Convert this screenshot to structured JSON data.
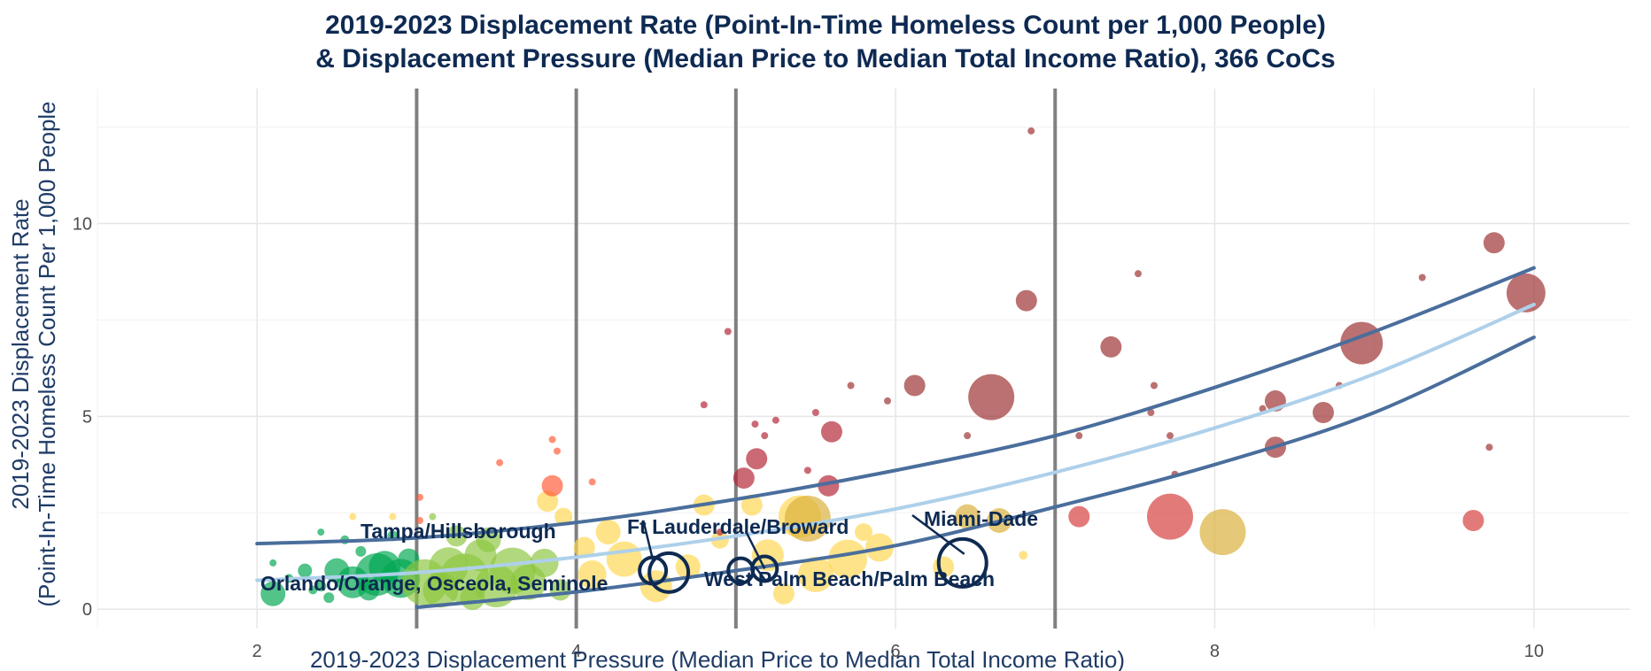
{
  "chart_data": {
    "type": "scatter",
    "title_line1": "2019-2023 Displacement Rate (Point-In-Time Homeless Count per 1,000 People)",
    "title_line2": "& Displacement Pressure (Median Price to Median Total Income Ratio), 366 CoCs",
    "xlabel": "2019-2023 Displacement Pressure (Median Price to Median Total Income Ratio)",
    "ylabel_line1": "2019-2023 Displacement Rate",
    "ylabel_line2": "(Point-In-Time Homeless Count Per 1,000 People",
    "xlim": [
      1.0,
      10.6
    ],
    "ylim": [
      -0.5,
      13.5
    ],
    "x_ticks": [
      2,
      4,
      6,
      8,
      10
    ],
    "y_ticks": [
      0,
      5,
      10
    ],
    "grid": true,
    "vertical_reference_lines": [
      3,
      4,
      5,
      7
    ],
    "colors": {
      "green": "#00a651",
      "light_green": "#8cc63f",
      "yellow": "#ffd54f",
      "orange_red": "#ff5a36",
      "dark_red": "#b22234",
      "maroon": "#9b2d2d",
      "fit": "#aed0ea",
      "band": "#4a6e9c",
      "highlight": "#0e2a52",
      "reference_line": "#808080"
    },
    "points": [
      {
        "x": 2.1,
        "y": 0.4,
        "s": 14,
        "c": "green"
      },
      {
        "x": 2.1,
        "y": 1.2,
        "s": 4,
        "c": "green"
      },
      {
        "x": 2.2,
        "y": 0.8,
        "s": 5,
        "c": "green"
      },
      {
        "x": 2.3,
        "y": 1.0,
        "s": 8,
        "c": "green"
      },
      {
        "x": 2.35,
        "y": 0.5,
        "s": 5,
        "c": "green"
      },
      {
        "x": 2.4,
        "y": 0.6,
        "s": 6,
        "c": "green"
      },
      {
        "x": 2.4,
        "y": 2.0,
        "s": 4,
        "c": "green"
      },
      {
        "x": 2.5,
        "y": 1.0,
        "s": 14,
        "c": "green"
      },
      {
        "x": 2.6,
        "y": 0.7,
        "s": 18,
        "c": "green"
      },
      {
        "x": 2.7,
        "y": 0.5,
        "s": 12,
        "c": "green"
      },
      {
        "x": 2.75,
        "y": 0.9,
        "s": 24,
        "c": "green"
      },
      {
        "x": 2.8,
        "y": 1.1,
        "s": 18,
        "c": "green"
      },
      {
        "x": 2.9,
        "y": 0.8,
        "s": 22,
        "c": "green"
      },
      {
        "x": 2.95,
        "y": 1.3,
        "s": 12,
        "c": "green"
      },
      {
        "x": 2.65,
        "y": 1.5,
        "s": 6,
        "c": "green"
      },
      {
        "x": 2.55,
        "y": 1.8,
        "s": 5,
        "c": "green"
      },
      {
        "x": 2.85,
        "y": 1.9,
        "s": 6,
        "c": "green"
      },
      {
        "x": 2.45,
        "y": 0.3,
        "s": 6,
        "c": "green"
      },
      {
        "x": 3.05,
        "y": 0.7,
        "s": 26,
        "c": "light_green"
      },
      {
        "x": 3.15,
        "y": 0.5,
        "s": 20,
        "c": "light_green"
      },
      {
        "x": 3.2,
        "y": 1.1,
        "s": 22,
        "c": "light_green"
      },
      {
        "x": 3.3,
        "y": 0.8,
        "s": 28,
        "c": "light_green"
      },
      {
        "x": 3.4,
        "y": 1.4,
        "s": 18,
        "c": "light_green"
      },
      {
        "x": 3.5,
        "y": 0.6,
        "s": 24,
        "c": "light_green"
      },
      {
        "x": 3.6,
        "y": 1.0,
        "s": 26,
        "c": "light_green"
      },
      {
        "x": 3.7,
        "y": 0.7,
        "s": 20,
        "c": "light_green"
      },
      {
        "x": 3.8,
        "y": 1.2,
        "s": 16,
        "c": "light_green"
      },
      {
        "x": 3.25,
        "y": 1.9,
        "s": 12,
        "c": "light_green"
      },
      {
        "x": 3.45,
        "y": 1.8,
        "s": 14,
        "c": "light_green"
      },
      {
        "x": 3.9,
        "y": 0.5,
        "s": 12,
        "c": "light_green"
      },
      {
        "x": 3.1,
        "y": 2.4,
        "s": 4,
        "c": "light_green"
      },
      {
        "x": 3.35,
        "y": 0.3,
        "s": 14,
        "c": "light_green"
      },
      {
        "x": 4.1,
        "y": 0.9,
        "s": 16,
        "c": "yellow"
      },
      {
        "x": 4.3,
        "y": 1.3,
        "s": 20,
        "c": "yellow"
      },
      {
        "x": 4.5,
        "y": 0.6,
        "s": 18,
        "c": "yellow"
      },
      {
        "x": 4.7,
        "y": 1.1,
        "s": 14,
        "c": "yellow"
      },
      {
        "x": 4.8,
        "y": 2.7,
        "s": 12,
        "c": "yellow"
      },
      {
        "x": 4.9,
        "y": 1.8,
        "s": 10,
        "c": "yellow"
      },
      {
        "x": 3.82,
        "y": 2.8,
        "s": 12,
        "c": "yellow"
      },
      {
        "x": 3.92,
        "y": 2.4,
        "s": 10,
        "c": "yellow"
      },
      {
        "x": 4.2,
        "y": 2.0,
        "s": 14,
        "c": "yellow"
      },
      {
        "x": 4.05,
        "y": 1.6,
        "s": 12,
        "c": "yellow"
      },
      {
        "x": 5.1,
        "y": 2.7,
        "s": 12,
        "c": "yellow"
      },
      {
        "x": 5.2,
        "y": 1.4,
        "s": 18,
        "c": "yellow"
      },
      {
        "x": 5.4,
        "y": 2.4,
        "s": 24,
        "c": "yellow"
      },
      {
        "x": 5.5,
        "y": 0.9,
        "s": 20,
        "c": "yellow"
      },
      {
        "x": 5.7,
        "y": 1.3,
        "s": 22,
        "c": "yellow"
      },
      {
        "x": 5.9,
        "y": 1.6,
        "s": 16,
        "c": "yellow"
      },
      {
        "x": 5.3,
        "y": 0.4,
        "s": 12,
        "c": "yellow"
      },
      {
        "x": 5.8,
        "y": 2.0,
        "s": 10,
        "c": "yellow"
      },
      {
        "x": 5.45,
        "y": 2.35,
        "s": 26,
        "c": "yellow_dark"
      },
      {
        "x": 6.45,
        "y": 2.4,
        "s": 14,
        "c": "yellow_dark"
      },
      {
        "x": 6.65,
        "y": 2.3,
        "s": 14,
        "c": "yellow_dark"
      },
      {
        "x": 8.05,
        "y": 2.0,
        "s": 26,
        "c": "yellow_dark"
      },
      {
        "x": 6.3,
        "y": 1.1,
        "s": 12,
        "c": "yellow"
      },
      {
        "x": 6.8,
        "y": 1.4,
        "s": 5,
        "c": "yellow"
      },
      {
        "x": 2.85,
        "y": 2.4,
        "s": 4,
        "c": "yellow"
      },
      {
        "x": 2.6,
        "y": 2.4,
        "s": 4,
        "c": "yellow"
      },
      {
        "x": 3.85,
        "y": 3.2,
        "s": 12,
        "c": "orange_red"
      },
      {
        "x": 3.52,
        "y": 3.8,
        "s": 4,
        "c": "orange_red"
      },
      {
        "x": 3.85,
        "y": 4.4,
        "s": 4,
        "c": "orange_red"
      },
      {
        "x": 4.1,
        "y": 3.3,
        "s": 4,
        "c": "orange_red"
      },
      {
        "x": 3.02,
        "y": 2.9,
        "s": 4,
        "c": "orange_red"
      },
      {
        "x": 3.02,
        "y": 2.3,
        "s": 4,
        "c": "orange_red"
      },
      {
        "x": 3.88,
        "y": 4.1,
        "s": 4,
        "c": "orange_red"
      },
      {
        "x": 7.72,
        "y": 2.4,
        "s": 26,
        "c": "red"
      },
      {
        "x": 9.62,
        "y": 2.3,
        "s": 12,
        "c": "red"
      },
      {
        "x": 7.15,
        "y": 2.4,
        "s": 12,
        "c": "red"
      },
      {
        "x": 5.6,
        "y": 4.6,
        "s": 12,
        "c": "dark_red"
      },
      {
        "x": 5.58,
        "y": 3.2,
        "s": 12,
        "c": "dark_red"
      },
      {
        "x": 5.13,
        "y": 3.9,
        "s": 12,
        "c": "dark_red"
      },
      {
        "x": 5.05,
        "y": 3.4,
        "s": 12,
        "c": "dark_red"
      },
      {
        "x": 5.12,
        "y": 4.8,
        "s": 4,
        "c": "dark_red"
      },
      {
        "x": 5.25,
        "y": 4.9,
        "s": 4,
        "c": "dark_red"
      },
      {
        "x": 5.5,
        "y": 5.1,
        "s": 4,
        "c": "dark_red"
      },
      {
        "x": 4.95,
        "y": 7.2,
        "s": 4,
        "c": "dark_red"
      },
      {
        "x": 4.8,
        "y": 5.3,
        "s": 4,
        "c": "dark_red"
      },
      {
        "x": 5.18,
        "y": 4.5,
        "s": 4,
        "c": "dark_red"
      },
      {
        "x": 5.45,
        "y": 3.6,
        "s": 4,
        "c": "dark_red"
      },
      {
        "x": 4.9,
        "y": 2.0,
        "s": 4,
        "c": "dark_red"
      },
      {
        "x": 6.12,
        "y": 5.8,
        "s": 12,
        "c": "maroon"
      },
      {
        "x": 5.72,
        "y": 5.8,
        "s": 4,
        "c": "maroon"
      },
      {
        "x": 5.95,
        "y": 5.4,
        "s": 4,
        "c": "maroon"
      },
      {
        "x": 6.45,
        "y": 4.5,
        "s": 4,
        "c": "maroon"
      },
      {
        "x": 6.6,
        "y": 5.5,
        "s": 26,
        "c": "maroon"
      },
      {
        "x": 6.82,
        "y": 8.0,
        "s": 12,
        "c": "maroon"
      },
      {
        "x": 6.85,
        "y": 12.4,
        "s": 4,
        "c": "maroon"
      },
      {
        "x": 7.15,
        "y": 4.5,
        "s": 4,
        "c": "maroon"
      },
      {
        "x": 7.35,
        "y": 6.8,
        "s": 12,
        "c": "maroon"
      },
      {
        "x": 7.52,
        "y": 8.7,
        "s": 4,
        "c": "maroon"
      },
      {
        "x": 7.62,
        "y": 5.8,
        "s": 4,
        "c": "maroon"
      },
      {
        "x": 7.6,
        "y": 5.1,
        "s": 4,
        "c": "maroon"
      },
      {
        "x": 7.72,
        "y": 4.5,
        "s": 4,
        "c": "maroon"
      },
      {
        "x": 7.75,
        "y": 3.5,
        "s": 4,
        "c": "maroon"
      },
      {
        "x": 8.3,
        "y": 5.2,
        "s": 4,
        "c": "maroon"
      },
      {
        "x": 8.38,
        "y": 5.4,
        "s": 12,
        "c": "maroon"
      },
      {
        "x": 8.38,
        "y": 4.2,
        "s": 12,
        "c": "maroon"
      },
      {
        "x": 8.68,
        "y": 5.1,
        "s": 12,
        "c": "maroon"
      },
      {
        "x": 8.78,
        "y": 5.8,
        "s": 4,
        "c": "maroon"
      },
      {
        "x": 8.92,
        "y": 6.9,
        "s": 24,
        "c": "maroon"
      },
      {
        "x": 9.3,
        "y": 8.6,
        "s": 4,
        "c": "maroon"
      },
      {
        "x": 9.72,
        "y": 4.2,
        "s": 4,
        "c": "maroon"
      },
      {
        "x": 9.75,
        "y": 9.5,
        "s": 12,
        "c": "maroon"
      },
      {
        "x": 9.95,
        "y": 8.2,
        "s": 22,
        "c": "maroon"
      }
    ],
    "fit_center": [
      [
        2.0,
        0.75
      ],
      [
        3.0,
        0.95
      ],
      [
        4.0,
        1.35
      ],
      [
        5.0,
        1.9
      ],
      [
        6.0,
        2.6
      ],
      [
        7.0,
        3.55
      ],
      [
        8.0,
        4.7
      ],
      [
        9.0,
        6.1
      ],
      [
        10.0,
        7.9
      ]
    ],
    "fit_upper": [
      [
        2.0,
        1.7
      ],
      [
        3.0,
        1.85
      ],
      [
        4.0,
        2.25
      ],
      [
        5.0,
        2.85
      ],
      [
        6.0,
        3.6
      ],
      [
        7.0,
        4.5
      ],
      [
        8.0,
        5.75
      ],
      [
        9.0,
        7.2
      ],
      [
        10.0,
        8.85
      ]
    ],
    "fit_lower": [
      [
        3.0,
        0.05
      ],
      [
        4.0,
        0.45
      ],
      [
        5.0,
        1.0
      ],
      [
        6.0,
        1.65
      ],
      [
        7.0,
        2.65
      ],
      [
        8.0,
        3.75
      ],
      [
        9.0,
        5.1
      ],
      [
        10.0,
        7.05
      ]
    ],
    "highlighted": [
      {
        "label": "Tampa/Hillsborough",
        "x": 4.48,
        "y": 1.0,
        "s": 15
      },
      {
        "label": "Orlando/Orange, Osceola, Seminole",
        "x": 4.58,
        "y": 0.95,
        "s": 22
      },
      {
        "label": "Ft Lauderdale/Broward",
        "x": 5.03,
        "y": 1.0,
        "s": 14
      },
      {
        "label": "West Palm Beach/Palm Beach",
        "x": 5.18,
        "y": 1.05,
        "s": 14
      },
      {
        "label": "Miami-Dade",
        "x": 6.42,
        "y": 1.2,
        "s": 27
      }
    ],
    "annotation_labels": {
      "tampa": "Tampa/Hillsborough",
      "orlando": "Orlando/Orange, Osceola, Seminole",
      "ftlauderdale": "Ft Lauderdale/Broward",
      "westpalm": "West Palm Beach/Palm Beach",
      "miami": "Miami-Dade"
    }
  }
}
